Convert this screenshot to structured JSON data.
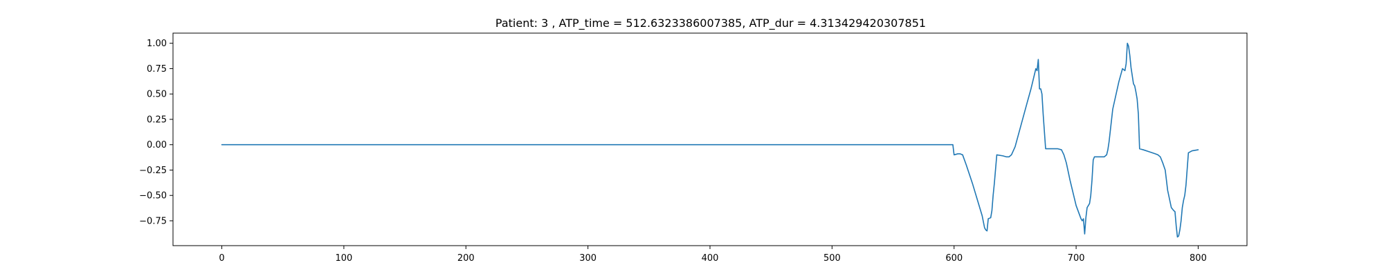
{
  "chart_data": {
    "type": "line",
    "title": "Patient: 3 , ATP_time = 512.6323386007385, ATP_dur = 4.313429420307851",
    "xlabel": "",
    "ylabel": "",
    "xlim": [
      -40,
      840
    ],
    "ylim": [
      -0.995,
      1.1
    ],
    "x_ticks": [
      0,
      100,
      200,
      300,
      400,
      500,
      600,
      700,
      800
    ],
    "x_tick_labels": [
      "0",
      "100",
      "200",
      "300",
      "400",
      "500",
      "600",
      "700",
      "800"
    ],
    "y_ticks": [
      -0.75,
      -0.5,
      -0.25,
      0.0,
      0.25,
      0.5,
      0.75,
      1.0
    ],
    "y_tick_labels": [
      "−0.75",
      "−0.50",
      "−0.25",
      "0.00",
      "0.25",
      "0.50",
      "0.75",
      "1.00"
    ],
    "grid": false,
    "legend": "none",
    "series": [
      {
        "color": "#1f77b4",
        "x": [
          0,
          100,
          200,
          300,
          400,
          500,
          598,
          599,
          600,
          603,
          605,
          607,
          610,
          615,
          620,
          623,
          625,
          626,
          627,
          628,
          630,
          631,
          632,
          633,
          635,
          640,
          643,
          645,
          647,
          650,
          655,
          660,
          663,
          664,
          665,
          666,
          667,
          668,
          669,
          670,
          671,
          672,
          673,
          675,
          680,
          685,
          688,
          690,
          692,
          695,
          700,
          704,
          705,
          706,
          707,
          708,
          709,
          710,
          711,
          712,
          713,
          714,
          715,
          717,
          720,
          723,
          725,
          726,
          727,
          730,
          735,
          738,
          740,
          741,
          742,
          743,
          744,
          745,
          746,
          747,
          748,
          749,
          750,
          751,
          752,
          755,
          760,
          765,
          767,
          769,
          771,
          773,
          775,
          778,
          780,
          781,
          782,
          783,
          784,
          785,
          786,
          787,
          788,
          789,
          790,
          792,
          795,
          800
        ],
        "y": [
          0.0,
          0.0,
          0.0,
          0.0,
          0.0,
          0.0,
          0.0,
          0.0,
          -0.1,
          -0.09,
          -0.09,
          -0.1,
          -0.2,
          -0.38,
          -0.58,
          -0.7,
          -0.82,
          -0.84,
          -0.85,
          -0.73,
          -0.72,
          -0.65,
          -0.5,
          -0.38,
          -0.1,
          -0.11,
          -0.12,
          -0.12,
          -0.1,
          -0.02,
          0.2,
          0.42,
          0.55,
          0.6,
          0.65,
          0.7,
          0.75,
          0.73,
          0.84,
          0.55,
          0.55,
          0.5,
          0.3,
          -0.04,
          -0.04,
          -0.04,
          -0.05,
          -0.1,
          -0.18,
          -0.35,
          -0.6,
          -0.73,
          -0.75,
          -0.73,
          -0.88,
          -0.72,
          -0.62,
          -0.6,
          -0.58,
          -0.5,
          -0.35,
          -0.15,
          -0.12,
          -0.12,
          -0.12,
          -0.12,
          -0.1,
          -0.05,
          0.03,
          0.35,
          0.62,
          0.75,
          0.73,
          0.8,
          1.0,
          0.97,
          0.88,
          0.76,
          0.68,
          0.6,
          0.58,
          0.52,
          0.45,
          0.3,
          -0.04,
          -0.05,
          -0.07,
          -0.09,
          -0.1,
          -0.12,
          -0.18,
          -0.25,
          -0.45,
          -0.62,
          -0.65,
          -0.66,
          -0.8,
          -0.91,
          -0.9,
          -0.84,
          -0.75,
          -0.62,
          -0.55,
          -0.5,
          -0.4,
          -0.08,
          -0.06,
          -0.05
        ]
      }
    ]
  }
}
